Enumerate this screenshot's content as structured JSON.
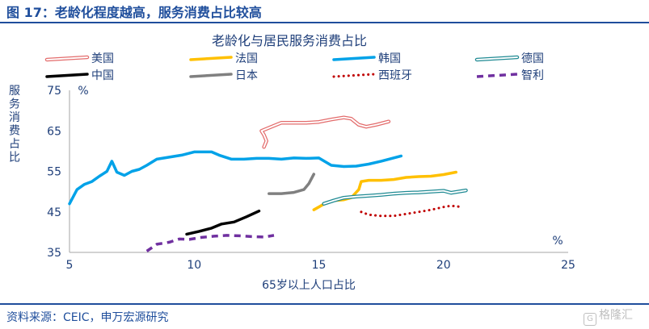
{
  "header": {
    "figure_title": "图 17：老龄化程度越高，服务消费占比较高"
  },
  "footer": {
    "source": "资料来源：CEIC，申万宏源研究",
    "watermark": "格隆汇"
  },
  "chart_data": {
    "type": "line",
    "title": "老龄化与居民服务消费占比",
    "xlabel": "65岁以上人口占比",
    "ylabel": "服务消费占比",
    "x_unit": "%",
    "y_unit": "%",
    "xlim": [
      5,
      25
    ],
    "ylim": [
      35,
      75
    ],
    "x_ticks": [
      5,
      10,
      15,
      20,
      25
    ],
    "y_ticks": [
      35,
      45,
      55,
      65,
      75
    ],
    "legend_position": "top",
    "series": [
      {
        "name": "美国",
        "color": "#e36c6c",
        "style": "double",
        "points": [
          [
            12.8,
            61
          ],
          [
            12.9,
            62.5
          ],
          [
            12.8,
            64
          ],
          [
            12.7,
            65
          ],
          [
            13.1,
            66
          ],
          [
            13.5,
            67
          ],
          [
            14,
            67
          ],
          [
            14.5,
            67
          ],
          [
            15,
            67.2
          ],
          [
            15.5,
            67.8
          ],
          [
            16,
            68.3
          ],
          [
            16.3,
            68
          ],
          [
            16.6,
            66.5
          ],
          [
            16.9,
            66
          ],
          [
            17.3,
            66.5
          ],
          [
            17.8,
            67.3
          ]
        ]
      },
      {
        "name": "法国",
        "color": "#ffc000",
        "style": "solid",
        "points": [
          [
            14.8,
            45.5
          ],
          [
            15,
            46.2
          ],
          [
            15.3,
            47.3
          ],
          [
            15.6,
            47.8
          ],
          [
            16,
            48
          ],
          [
            16.3,
            48.5
          ],
          [
            16.6,
            50.5
          ],
          [
            16.7,
            52.5
          ],
          [
            17,
            52.8
          ],
          [
            17.5,
            52.8
          ],
          [
            18,
            53
          ],
          [
            18.5,
            53.5
          ],
          [
            19,
            53.7
          ],
          [
            19.5,
            53.8
          ],
          [
            20,
            54.2
          ],
          [
            20.5,
            54.8
          ]
        ]
      },
      {
        "name": "韩国",
        "color": "#00a2e8",
        "style": "solid",
        "points": [
          [
            5,
            47
          ],
          [
            5.3,
            50.5
          ],
          [
            5.6,
            51.8
          ],
          [
            5.9,
            52.5
          ],
          [
            6.2,
            53.8
          ],
          [
            6.5,
            55
          ],
          [
            6.7,
            57.5
          ],
          [
            6.9,
            54.8
          ],
          [
            7.2,
            54
          ],
          [
            7.5,
            55
          ],
          [
            7.8,
            55.5
          ],
          [
            8.1,
            56.5
          ],
          [
            8.5,
            58
          ],
          [
            9,
            58.5
          ],
          [
            9.5,
            59
          ],
          [
            10,
            59.8
          ],
          [
            10.7,
            59.8
          ],
          [
            11,
            59
          ],
          [
            11.5,
            58
          ],
          [
            12,
            58
          ],
          [
            12.5,
            58.2
          ],
          [
            13,
            58.2
          ],
          [
            13.5,
            58
          ],
          [
            14,
            58.3
          ],
          [
            14.5,
            58.2
          ],
          [
            15,
            58.3
          ],
          [
            15.5,
            56.5
          ],
          [
            16,
            56.2
          ],
          [
            16.5,
            56.3
          ],
          [
            17,
            56.8
          ],
          [
            17.5,
            57.5
          ],
          [
            18.3,
            58.8
          ]
        ]
      },
      {
        "name": "德国",
        "color": "#1f8a93",
        "style": "double",
        "points": [
          [
            15.2,
            47
          ],
          [
            15.6,
            47.8
          ],
          [
            16,
            48.5
          ],
          [
            16.5,
            48.8
          ],
          [
            17,
            49
          ],
          [
            17.5,
            49.2
          ],
          [
            18,
            49.5
          ],
          [
            18.5,
            49.7
          ],
          [
            19,
            49.8
          ],
          [
            19.5,
            50
          ],
          [
            20,
            50.2
          ],
          [
            20.3,
            49.7
          ],
          [
            20.6,
            50
          ],
          [
            20.9,
            50.3
          ]
        ]
      },
      {
        "name": "中国",
        "color": "#000000",
        "style": "solid",
        "points": [
          [
            9.7,
            39.5
          ],
          [
            10.2,
            40.2
          ],
          [
            10.7,
            41
          ],
          [
            11.1,
            42
          ],
          [
            11.6,
            42.5
          ],
          [
            12.1,
            43.8
          ],
          [
            12.6,
            45.2
          ]
        ]
      },
      {
        "name": "日本",
        "color": "#808080",
        "style": "solid",
        "points": [
          [
            13,
            49.5
          ],
          [
            13.5,
            49.5
          ],
          [
            14,
            49.8
          ],
          [
            14.4,
            50.5
          ],
          [
            14.6,
            52
          ],
          [
            14.8,
            54.3
          ]
        ]
      },
      {
        "name": "西班牙",
        "color": "#c00000",
        "style": "dotted",
        "points": [
          [
            16.7,
            45
          ],
          [
            17,
            44.3
          ],
          [
            17.5,
            44
          ],
          [
            18,
            44
          ],
          [
            18.5,
            44.5
          ],
          [
            19,
            45
          ],
          [
            19.5,
            45.5
          ],
          [
            20,
            46.2
          ],
          [
            20.3,
            46.5
          ],
          [
            20.6,
            46.3
          ]
        ]
      },
      {
        "name": "智利",
        "color": "#7030a0",
        "style": "dashed",
        "points": [
          [
            8.1,
            35.3
          ],
          [
            8.5,
            37
          ],
          [
            9,
            37.5
          ],
          [
            9.4,
            38.3
          ],
          [
            9.8,
            38.2
          ],
          [
            10.3,
            38.7
          ],
          [
            10.8,
            39
          ],
          [
            11.3,
            39.2
          ],
          [
            11.8,
            39.1
          ],
          [
            12.3,
            38.9
          ],
          [
            12.8,
            38.8
          ],
          [
            13.2,
            39.2
          ]
        ]
      }
    ]
  }
}
